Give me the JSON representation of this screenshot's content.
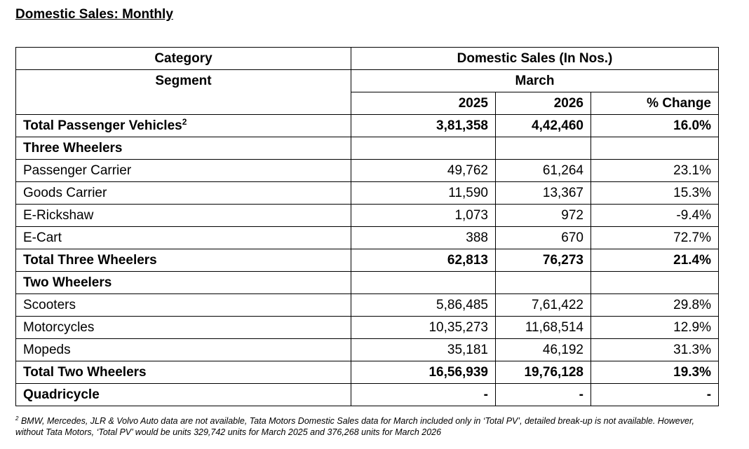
{
  "title": "Domestic Sales: Monthly",
  "table": {
    "header": {
      "category": "Category",
      "segment": "Segment",
      "group": "Domestic Sales (In Nos.)",
      "month": "March",
      "columns": [
        "2025",
        "2026",
        "% Change"
      ]
    },
    "rows": [
      {
        "label": "Total Passenger Vehicles",
        "sup": "2",
        "bold": true,
        "values": [
          "3,81,358",
          "4,42,460",
          "16.0%"
        ]
      },
      {
        "label": "Three Wheelers",
        "bold": true
      },
      {
        "label": "Passenger Carrier",
        "bold": false,
        "values": [
          "49,762",
          "61,264",
          "23.1%"
        ]
      },
      {
        "label": "Goods Carrier",
        "bold": false,
        "values": [
          "11,590",
          "13,367",
          "15.3%"
        ]
      },
      {
        "label": "E-Rickshaw",
        "bold": false,
        "values": [
          "1,073",
          "972",
          "-9.4%"
        ]
      },
      {
        "label": "E-Cart",
        "bold": false,
        "values": [
          "388",
          "670",
          "72.7%"
        ]
      },
      {
        "label": "Total Three Wheelers",
        "bold": true,
        "values": [
          "62,813",
          "76,273",
          "21.4%"
        ]
      },
      {
        "label": "Two Wheelers",
        "bold": true
      },
      {
        "label": "Scooters",
        "bold": false,
        "values": [
          "5,86,485",
          "7,61,422",
          "29.8%"
        ]
      },
      {
        "label": "Motorcycles",
        "bold": false,
        "values": [
          "10,35,273",
          "11,68,514",
          "12.9%"
        ]
      },
      {
        "label": "Mopeds",
        "bold": false,
        "values": [
          "35,181",
          "46,192",
          "31.3%"
        ]
      },
      {
        "label": "Total Two Wheelers",
        "bold": true,
        "values": [
          "16,56,939",
          "19,76,128",
          "19.3%"
        ]
      },
      {
        "label": "Quadricycle",
        "bold": true,
        "values": [
          "-",
          "-",
          "-"
        ]
      }
    ]
  },
  "footnote": {
    "marker": "2",
    "text": "BMW, Mercedes, JLR & Volvo Auto data are not available, Tata Motors Domestic Sales data for March included only in ‘Total PV’, detailed break-up is not available. However, without Tata Motors, ‘Total PV’ would be units 329,742 units for March 2025 and 376,268 units for March 2026"
  }
}
